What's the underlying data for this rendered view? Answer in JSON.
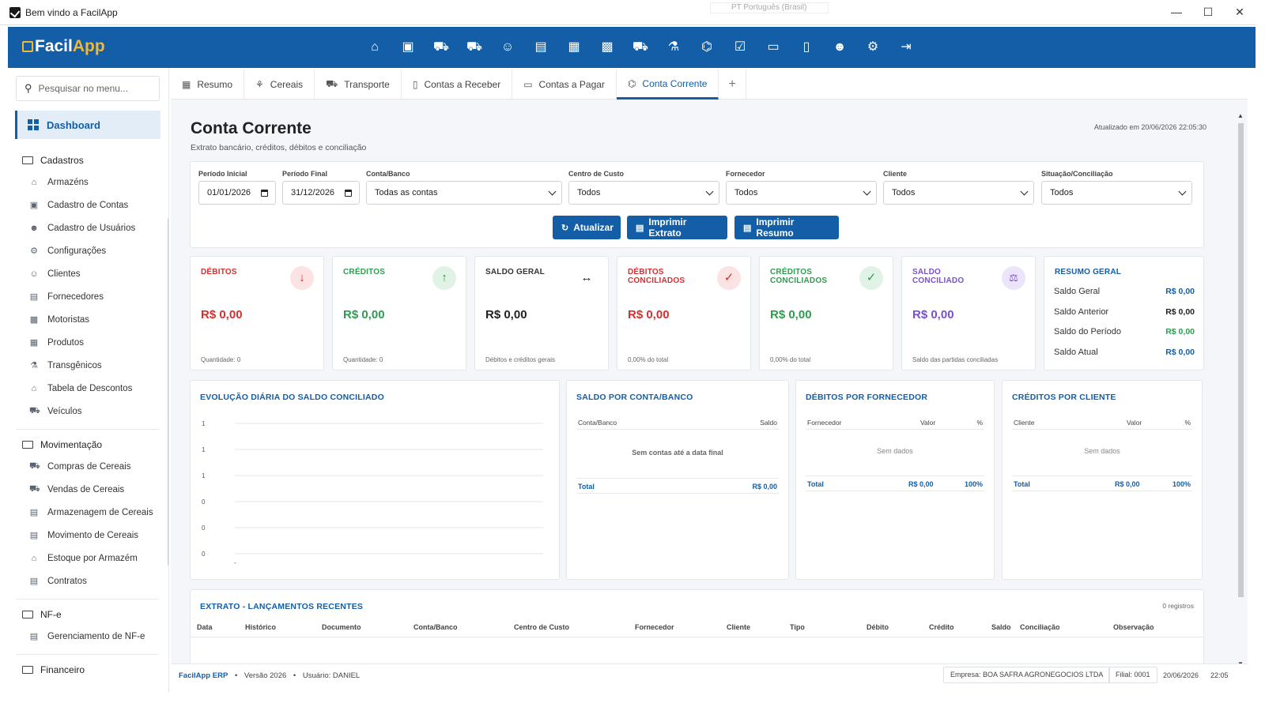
{
  "window": {
    "title": "Bem vindo a FacilApp",
    "language": "PT Português (Brasil)",
    "minimize": "—",
    "maximize": "☐",
    "close": "✕"
  },
  "brand": {
    "primary": "Facil",
    "secondary": "App",
    "color": "#135ea7",
    "accent": "#f4b732"
  },
  "top_icons": [
    "warehouse-icon",
    "wallet-icon",
    "cart-plus-icon",
    "cart-icon",
    "users-icon",
    "receipt-icon",
    "clipboard-icon",
    "id-badge-icon",
    "truck-icon",
    "flask-icon",
    "bank-icon",
    "checklist-icon",
    "money-icon",
    "invoice-icon",
    "user-cog-icon",
    "gear-icon",
    "logout-icon"
  ],
  "sidebar": {
    "search_placeholder": "Pesquisar no menu...",
    "dashboard": "Dashboard",
    "groups": [
      {
        "label": "Cadastros",
        "items": [
          "Armazéns",
          "Cadastro de Contas",
          "Cadastro de Usuários",
          "Configurações",
          "Clientes",
          "Fornecedores",
          "Motoristas",
          "Produtos",
          "Transgênicos",
          "Tabela de Descontos",
          "Veículos"
        ]
      },
      {
        "label": "Movimentação",
        "items": [
          "Compras de Cereais",
          "Vendas de Cereais",
          "Armazenagem de Cereais",
          "Movimento de Cereais",
          "Estoque por Armazém",
          "Contratos"
        ]
      },
      {
        "label": "NF-e",
        "items": [
          "Gerenciamento de NF-e"
        ]
      },
      {
        "label": "Financeiro",
        "items": []
      }
    ]
  },
  "tabs": [
    "Resumo",
    "Cereais",
    "Transporte",
    "Contas a Receber",
    "Contas a Pagar",
    "Conta Corrente"
  ],
  "tab_plus": "+",
  "page": {
    "title": "Conta Corrente",
    "subtitle": "Extrato bancário, créditos, débitos e conciliação",
    "updated": "Atualizado em 20/06/2026 22:05:30"
  },
  "filters": {
    "periodo_inicial": {
      "label": "Período Inicial",
      "value": "01/01/2026"
    },
    "periodo_final": {
      "label": "Período Final",
      "value": "31/12/2026"
    },
    "conta": {
      "label": "Conta/Banco",
      "value": "Todas as contas"
    },
    "centro": {
      "label": "Centro de Custo",
      "value": "Todos"
    },
    "fornecedor": {
      "label": "Fornecedor",
      "value": "Todos"
    },
    "cliente": {
      "label": "Cliente",
      "value": "Todos"
    },
    "situacao": {
      "label": "Situação/Conciliação",
      "value": "Todos"
    }
  },
  "buttons": {
    "atualizar": "Atualizar",
    "imprimir_extrato": "Imprimir Extrato",
    "imprimir_resumo": "Imprimir Resumo"
  },
  "cards": {
    "debitos": {
      "label": "DÉBITOS",
      "value": "R$ 0,00",
      "foot": "Quantidade: 0",
      "icon": "↓"
    },
    "creditos": {
      "label": "CRÉDITOS",
      "value": "R$ 0,00",
      "foot": "Quantidade: 0",
      "icon": "↑"
    },
    "saldo_geral": {
      "label": "SALDO GERAL",
      "value": "R$ 0,00",
      "foot": "Débitos e créditos gerais",
      "icon": "↔"
    },
    "deb_conc": {
      "label1": "DÉBITOS",
      "label2": "CONCILIADOS",
      "value": "R$ 0,00",
      "foot": "0,00% do total",
      "icon": "✓"
    },
    "cred_conc": {
      "label1": "CRÉDITOS",
      "label2": "CONCILIADOS",
      "value": "R$ 0,00",
      "foot": "0,00% do total",
      "icon": "✓"
    },
    "saldo_conc": {
      "label1": "SALDO",
      "label2": "CONCILIADO",
      "value": "R$ 0,00",
      "foot": "Saldo das partidas conciliadas",
      "icon": "⚖"
    }
  },
  "resumo": {
    "title": "RESUMO GERAL",
    "rows": [
      {
        "label": "Saldo Geral",
        "value": "R$ 0,00"
      },
      {
        "label": "Saldo Anterior",
        "value": "R$ 0,00"
      },
      {
        "label": "Saldo do Período",
        "value": "R$ 0,00"
      },
      {
        "label": "Saldo Atual",
        "value": "R$ 0,00"
      }
    ]
  },
  "evolucao": {
    "title": "EVOLUÇÃO DIÁRIA DO SALDO CONCILIADO",
    "yticks": [
      "1",
      "1",
      "1",
      "0",
      "0",
      "0"
    ],
    "xtick": "-"
  },
  "saldo_conta": {
    "title": "SALDO POR CONTA/BANCO",
    "col1": "Conta/Banco",
    "col2": "Saldo",
    "empty": "Sem contas até a data final",
    "total_label": "Total",
    "total_value": "R$ 0,00"
  },
  "deb_fornecedor": {
    "title": "DÉBITOS POR FORNECEDOR",
    "col1": "Fornecedor",
    "col2": "Valor",
    "col3": "%",
    "empty": "Sem dados",
    "total_label": "Total",
    "total_value": "R$ 0,00",
    "total_pct": "100%"
  },
  "cred_cliente": {
    "title": "CRÉDITOS POR CLIENTE",
    "col1": "Cliente",
    "col2": "Valor",
    "col3": "%",
    "empty": "Sem dados",
    "total_label": "Total",
    "total_value": "R$ 0,00",
    "total_pct": "100%"
  },
  "extrato": {
    "title": "EXTRATO - LANÇAMENTOS RECENTES",
    "count": "0 registros",
    "columns": [
      "Data",
      "Histórico",
      "Documento",
      "Conta/Banco",
      "Centro de Custo",
      "Fornecedor",
      "Cliente",
      "Tipo",
      "Débito",
      "Crédito",
      "Saldo",
      "Conciliação",
      "Observação"
    ]
  },
  "status": {
    "brand": "FacilApp ERP",
    "versao": "Versão 2026",
    "usuario": "Usuário: DANIEL",
    "empresa": "Empresa: BOA SAFRA AGRONEGOCIOS LTDA",
    "filial": "Filial: 0001",
    "date": "20/06/2026",
    "time": "22:05"
  }
}
